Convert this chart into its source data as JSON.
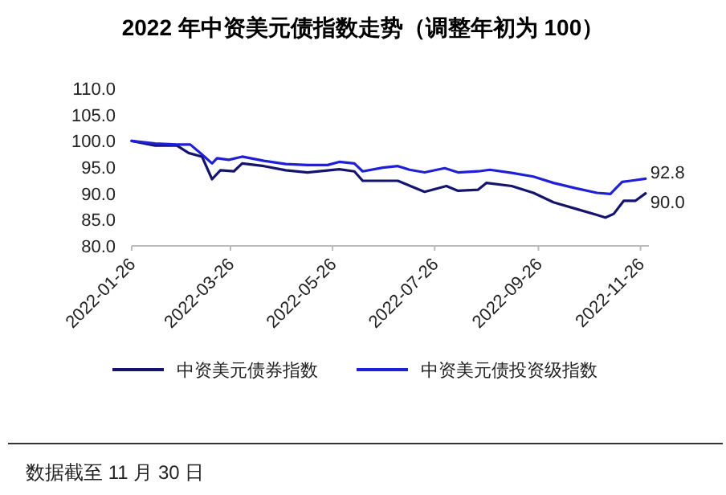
{
  "chart_data": {
    "type": "line",
    "title": "2022 年中资美元债指数走势（调整年初为 100）",
    "xlim": [
      "2022-01-26",
      "2022-12-01"
    ],
    "xticks": [
      "2022-01-26",
      "2022-03-26",
      "2022-05-26",
      "2022-07-26",
      "2022-09-26",
      "2022-11-26"
    ],
    "ylim": [
      80,
      110
    ],
    "yticks": [
      {
        "value": 80,
        "label": "80.0"
      },
      {
        "value": 85,
        "label": "85.0"
      },
      {
        "value": 90,
        "label": "90.0"
      },
      {
        "value": 95,
        "label": "95.0"
      },
      {
        "value": 100,
        "label": "100.0"
      },
      {
        "value": 105,
        "label": "105.0"
      },
      {
        "value": 110,
        "label": "110.0"
      }
    ],
    "legend": "bottom",
    "grid": false,
    "marker": "none",
    "line_style": "solid",
    "series": [
      {
        "name": "中资美元债券指数",
        "color": "#14146e",
        "x": [
          "2022-01-26",
          "2022-02-09",
          "2022-02-22",
          "2022-03-01",
          "2022-03-09",
          "2022-03-15",
          "2022-03-20",
          "2022-03-28",
          "2022-04-02",
          "2022-04-15",
          "2022-04-28",
          "2022-05-11",
          "2022-05-30",
          "2022-06-08",
          "2022-06-13",
          "2022-07-04",
          "2022-07-20",
          "2022-08-02",
          "2022-08-09",
          "2022-08-21",
          "2022-08-26",
          "2022-09-10",
          "2022-09-23",
          "2022-10-05",
          "2022-10-18",
          "2022-10-31",
          "2022-11-05",
          "2022-11-10",
          "2022-11-16",
          "2022-11-23",
          "2022-11-29"
        ],
        "values": [
          100.0,
          99.1,
          99.1,
          97.7,
          97.0,
          92.7,
          94.4,
          94.2,
          95.7,
          95.2,
          94.4,
          94.0,
          94.6,
          94.2,
          92.4,
          92.4,
          90.3,
          91.4,
          90.5,
          90.7,
          92.0,
          91.4,
          90.1,
          88.3,
          87.1,
          85.9,
          85.4,
          86.1,
          88.6,
          88.6,
          90.0
        ],
        "value_labels": [
          null,
          null,
          null,
          null,
          null,
          null,
          null,
          null,
          null,
          null,
          null,
          null,
          null,
          null,
          null,
          null,
          null,
          null,
          null,
          null,
          null,
          null,
          null,
          null,
          null,
          null,
          null,
          null,
          null,
          null,
          "90.0"
        ]
      },
      {
        "name": "中资美元债投资级指数",
        "color": "#1f1fd6",
        "x": [
          "2022-01-26",
          "2022-02-09",
          "2022-02-22",
          "2022-03-02",
          "2022-03-09",
          "2022-03-15",
          "2022-03-18",
          "2022-03-25",
          "2022-04-02",
          "2022-04-15",
          "2022-04-28",
          "2022-05-11",
          "2022-05-23",
          "2022-05-30",
          "2022-06-08",
          "2022-06-13",
          "2022-06-25",
          "2022-07-04",
          "2022-07-11",
          "2022-07-20",
          "2022-08-01",
          "2022-08-09",
          "2022-08-21",
          "2022-08-28",
          "2022-09-10",
          "2022-09-23",
          "2022-10-05",
          "2022-10-18",
          "2022-10-31",
          "2022-11-08",
          "2022-11-15",
          "2022-11-20",
          "2022-11-29"
        ],
        "values": [
          100.0,
          99.5,
          99.3,
          99.3,
          97.4,
          95.7,
          96.7,
          96.4,
          97.0,
          96.2,
          95.6,
          95.4,
          95.4,
          96.0,
          95.7,
          94.2,
          94.9,
          95.2,
          94.5,
          94.0,
          94.8,
          94.0,
          94.2,
          94.5,
          93.9,
          93.2,
          92.0,
          91.0,
          90.1,
          89.9,
          92.2,
          92.4,
          92.8
        ],
        "value_labels": [
          null,
          null,
          null,
          null,
          null,
          null,
          null,
          null,
          null,
          null,
          null,
          null,
          null,
          null,
          null,
          null,
          null,
          null,
          null,
          null,
          null,
          null,
          null,
          null,
          null,
          null,
          null,
          null,
          null,
          null,
          null,
          null,
          "92.8"
        ]
      }
    ],
    "annotations": [
      "数据截至 11 月 30 日"
    ]
  }
}
